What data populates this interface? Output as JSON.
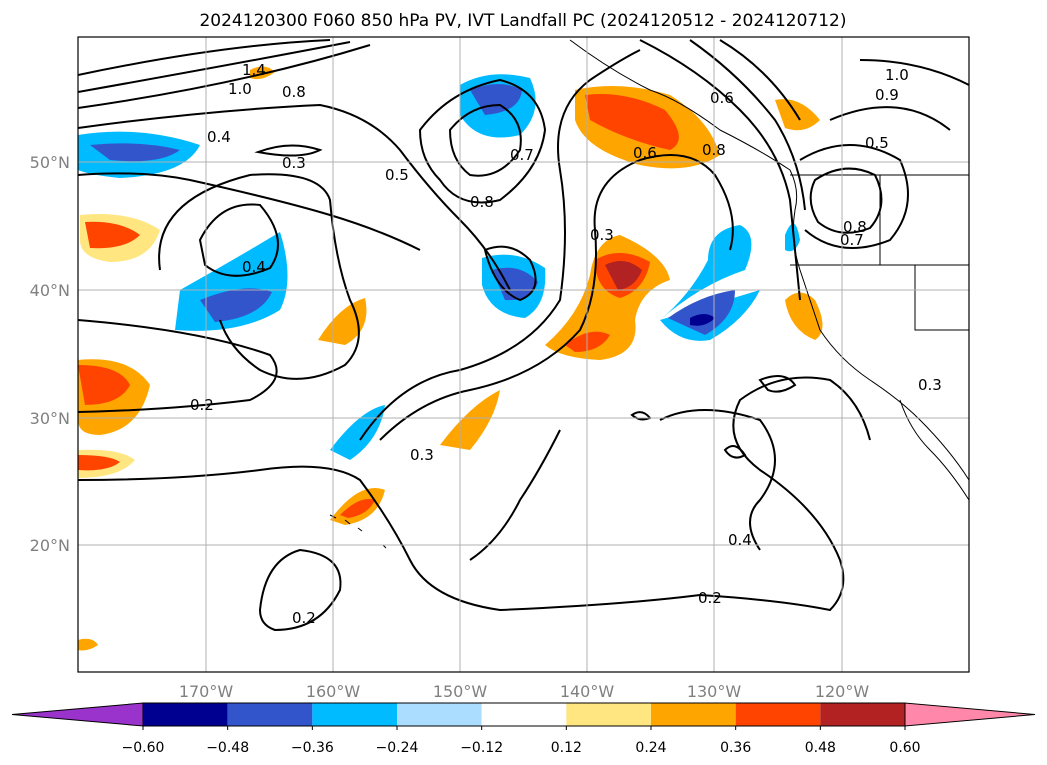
{
  "title": "2024120300 F060 850 hPa PV, IVT Landfall PC (2024120512 - 2024120712)",
  "map": {
    "lon_ticks": [
      "170°W",
      "160°W",
      "150°W",
      "140°W",
      "130°W",
      "120°W"
    ],
    "lat_ticks": [
      "50°N",
      "40°N",
      "30°N",
      "20°N"
    ],
    "contour_labels": [
      "1.4",
      "1.0",
      "0.8",
      "0.4",
      "0.3",
      "0.5",
      "0.4",
      "0.2",
      "0.3",
      "0.8",
      "0.7",
      "0.3",
      "0.6",
      "0.8",
      "0.6",
      "1.0",
      "0.9",
      "0.5",
      "0.8",
      "0.7",
      "0.3",
      "0.4",
      "0.2",
      "0.2"
    ]
  },
  "colorbar": {
    "ticks": [
      "−0.60",
      "−0.48",
      "−0.36",
      "−0.24",
      "−0.12",
      "0.12",
      "0.24",
      "0.36",
      "0.48",
      "0.60"
    ],
    "colors": [
      "#9933cc",
      "#000090",
      "#3355cc",
      "#00bbff",
      "#aaddff",
      "#ffffff",
      "#ffe680",
      "#ffa500",
      "#ff4400",
      "#b22222",
      "#ff88aa"
    ]
  }
}
